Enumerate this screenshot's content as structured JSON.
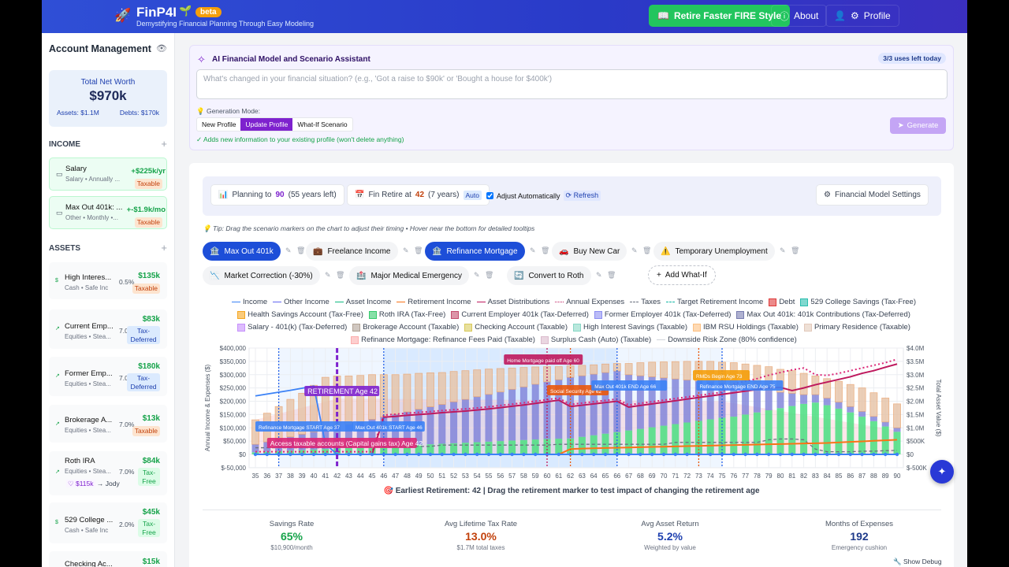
{
  "header": {
    "brand": "FinP4I",
    "beta": "beta",
    "tagline": "Demystifying Financial Planning Through Easy Modeling",
    "fire_button": "Retire Faster FIRE Style",
    "about": "About",
    "profile": "Profile"
  },
  "sidebar": {
    "title": "Account Management",
    "net_worth": {
      "label": "Total Net Worth",
      "value": "$970k",
      "assets": "Assets: $1.1M",
      "debts": "Debts: $170k"
    },
    "income_label": "INCOME",
    "assets_label": "ASSETS",
    "add": "+",
    "income": [
      {
        "name": "Salary",
        "sub": "Salary • Annually ...",
        "value": "+$225k/yr",
        "badge": "Taxable"
      },
      {
        "name": "Max Out 401k: ...",
        "sub": "Other • Monthly •...",
        "value": "+-$1.9k/mo",
        "badge": "Taxable"
      }
    ],
    "assets": [
      {
        "name": "High Interes...",
        "sub": "Cash • Safe Inc",
        "rate": "0.5%",
        "value": "$135k",
        "badge": "Taxable"
      },
      {
        "name": "Current Emp...",
        "sub": "Equities • Stea...",
        "rate": "7.0",
        "value": "$83k",
        "badge": "Tax-Deferred"
      },
      {
        "name": "Former Emp...",
        "sub": "Equities • Stea...",
        "rate": "7.0",
        "value": "$180k",
        "badge": "Tax-Deferred"
      },
      {
        "name": "Brokerage A...",
        "sub": "Equities • Stea...",
        "rate": "7.0%",
        "value": "$13k",
        "badge": "Taxable"
      },
      {
        "name": "Roth IRA",
        "sub": "Equities • Stea...",
        "rate": "7.0%",
        "value": "$84k",
        "badge": "Tax-Free",
        "gift": "♡ $115k",
        "beneficiary": "→ Jody"
      },
      {
        "name": "529 College ...",
        "sub": "Cash • Safe Inc",
        "rate": "2.0%",
        "value": "$45k",
        "badge": "Tax-Free"
      },
      {
        "name": "Checking Ac...",
        "value": "$15k"
      }
    ]
  },
  "ai": {
    "title": "AI Financial Model and Scenario Assistant",
    "uses": "3/3 uses left today",
    "placeholder": "What's changed in your financial situation? (e.g., 'Got a raise to $90k' or 'Bought a house for $400k')",
    "mode_label": "Generation Mode:",
    "modes": [
      "New Profile",
      "Update Profile",
      "What-If Scenario"
    ],
    "hint": "✓ Adds new information to your existing profile (won't delete anything)",
    "generate": "Generate"
  },
  "settings": {
    "planning_pre": "Planning to",
    "planning_age": "90",
    "planning_post": "(55 years left)",
    "retire_pre": "Fin Retire at",
    "retire_age": "42",
    "retire_post": "(7 years)",
    "auto": "Auto",
    "adjust": "Adjust Automatically",
    "refresh": "Refresh",
    "model_settings": "Financial Model Settings"
  },
  "tip": "Tip: Drag the scenario markers on the chart to adjust their timing • Hover near the bottom for detailed tooltips",
  "scenarios": [
    {
      "label": "Max Out 401k",
      "icon": "🏦",
      "active": true
    },
    {
      "label": "Freelance Income",
      "icon": "💼",
      "active": false
    },
    {
      "label": "Refinance Mortgage",
      "icon": "🏦",
      "active": true
    },
    {
      "label": "Buy New Car",
      "icon": "🚗",
      "active": false
    },
    {
      "label": "Temporary Unemployment",
      "icon": "⚠️",
      "active": false
    },
    {
      "label": "Market Correction (-30%)",
      "icon": "📉",
      "active": false
    },
    {
      "label": "Major Medical Emergency",
      "icon": "🏥",
      "active": false
    },
    {
      "label": "Convert to Roth",
      "icon": "🔄",
      "active": false
    }
  ],
  "add_whatif": "Add What-If",
  "legend": [
    {
      "label": "Income",
      "kind": "line",
      "color": "#3b82f6"
    },
    {
      "label": "Other Income",
      "kind": "line",
      "color": "#6366f1"
    },
    {
      "label": "Asset Income",
      "kind": "line",
      "color": "#10b981"
    },
    {
      "label": "Retirement Income",
      "kind": "line",
      "color": "#f97316"
    },
    {
      "label": "Asset Distributions",
      "kind": "line",
      "color": "#be185d"
    },
    {
      "label": "Annual Expenses",
      "kind": "dotted",
      "color": "#be185d"
    },
    {
      "label": "Taxes",
      "kind": "dashed",
      "color": "#6b7280"
    },
    {
      "label": "Target Retirement Income",
      "kind": "dashed",
      "color": "#14b8a6"
    },
    {
      "label": "Debt",
      "kind": "box",
      "color": "#dc2626"
    },
    {
      "label": "529 College Savings (Tax-Free)",
      "kind": "box",
      "color": "#14b8a6"
    },
    {
      "label": "Health Savings Account (Tax-Free)",
      "kind": "box",
      "color": "#f59e0b"
    },
    {
      "label": "Roth IRA (Tax-Free)",
      "kind": "box",
      "color": "#22c55e"
    },
    {
      "label": "Current Employer 401k (Tax-Deferred)",
      "kind": "box",
      "color": "#be3a5e"
    },
    {
      "label": "Former Employer 401k (Tax-Deferred)",
      "kind": "box",
      "color": "#8183f0"
    },
    {
      "label": "Max Out 401k: 401k Contributions (Tax-Deferred)",
      "kind": "box",
      "color": "#6b6fa8"
    },
    {
      "label": "Salary - 401(k) (Tax-Deferred)",
      "kind": "box",
      "color": "#c084fc"
    },
    {
      "label": "Brokerage Account (Taxable)",
      "kind": "box",
      "color": "#a8988a"
    },
    {
      "label": "Checking Account (Taxable)",
      "kind": "box",
      "color": "#d4c44a"
    },
    {
      "label": "High Interest Savings (Taxable)",
      "kind": "box",
      "color": "#7dd3c0"
    },
    {
      "label": "IBM RSU Holdings (Taxable)",
      "kind": "box",
      "color": "#fdba74"
    },
    {
      "label": "Primary Residence (Taxable)",
      "kind": "box",
      "color": "#e0c4b4"
    },
    {
      "label": "Refinance Mortgage: Refinance Fees Paid (Taxable)",
      "kind": "box",
      "color": "#fca5a5"
    },
    {
      "label": "Surplus Cash (Auto) (Taxable)",
      "kind": "box",
      "color": "#d8b4c8"
    },
    {
      "label": "Downside Risk Zone (80% confidence)",
      "kind": "line",
      "color": "#d1d5db"
    }
  ],
  "chart_data": {
    "type": "bar",
    "ylabel": "Annual Income & Expenses ($)",
    "y2label": "Total Asset Value ($)",
    "ylim": [
      -50000,
      400000
    ],
    "y2lim": [
      -500000,
      4000000
    ],
    "yticks": [
      "$400,000",
      "$350,000",
      "$300,000",
      "$250,000",
      "$200,000",
      "$150,000",
      "$100,000",
      "$50,000",
      "$0",
      "$-50,000"
    ],
    "y2ticks": [
      "$4.0M",
      "$3.5M",
      "$3.0M",
      "$2.5M",
      "$2.0M",
      "$1.5M",
      "$1.0M",
      "$500K",
      "$0",
      "$-500K"
    ],
    "x": [
      35,
      36,
      37,
      38,
      39,
      40,
      41,
      42,
      43,
      44,
      45,
      46,
      47,
      48,
      49,
      50,
      51,
      52,
      53,
      54,
      55,
      56,
      57,
      58,
      59,
      60,
      61,
      62,
      63,
      64,
      65,
      66,
      67,
      68,
      69,
      70,
      71,
      72,
      73,
      74,
      75,
      76,
      77,
      78,
      79,
      80,
      81,
      82,
      83,
      84,
      85,
      86,
      87,
      88,
      89,
      90
    ],
    "assets_unit": "$M",
    "total_assets": [
      1.3,
      1.55,
      1.8,
      2.07,
      2.3,
      2.6,
      2.9,
      2.95,
      2.95,
      2.97,
      3.0,
      3.0,
      3.0,
      3.02,
      3.05,
      3.07,
      3.08,
      3.12,
      3.15,
      3.18,
      3.21,
      3.23,
      3.25,
      3.27,
      3.29,
      3.3,
      3.3,
      3.33,
      3.35,
      3.37,
      3.4,
      3.42,
      3.42,
      3.45,
      3.47,
      3.48,
      3.49,
      3.5,
      3.5,
      3.5,
      3.47,
      3.45,
      3.4,
      3.35,
      3.3,
      3.2,
      3.15,
      3.05,
      2.95,
      2.85,
      2.75,
      2.63,
      2.5,
      2.32,
      2.12,
      1.9
    ],
    "roth_ira": [
      0.08,
      0.1,
      0.12,
      0.14,
      0.16,
      0.18,
      0.2,
      0.22,
      0.24,
      0.26,
      0.28,
      0.3,
      0.32,
      0.34,
      0.36,
      0.38,
      0.4,
      0.42,
      0.44,
      0.46,
      0.48,
      0.5,
      0.52,
      0.54,
      0.56,
      0.58,
      0.59,
      0.6,
      0.66,
      0.72,
      0.78,
      0.84,
      0.9,
      0.96,
      1.02,
      1.08,
      1.14,
      1.2,
      1.26,
      1.32,
      1.38,
      1.42,
      1.5,
      1.58,
      1.66,
      1.74,
      1.82,
      1.9,
      1.95,
      1.85,
      1.72,
      1.58,
      1.42,
      1.25,
      1.05,
      0.85
    ],
    "tax_deferred": [
      0.3,
      0.37,
      0.45,
      0.52,
      0.6,
      0.67,
      0.74,
      0.82,
      0.89,
      0.97,
      1.04,
      1.11,
      1.19,
      1.26,
      1.34,
      1.41,
      1.48,
      1.56,
      1.63,
      1.71,
      1.78,
      1.85,
      1.93,
      2.0,
      2.08,
      2.15,
      2.22,
      2.3,
      2.3,
      2.3,
      2.3,
      2.3,
      2.1,
      2.0,
      1.9,
      1.8,
      1.7,
      1.6,
      1.5,
      1.4,
      1.3,
      1.2,
      1.05,
      0.9,
      0.75,
      0.6,
      0.48,
      0.35,
      0.3,
      0.27,
      0.25,
      0.22,
      0.2,
      0.18,
      0.17,
      0.15
    ],
    "downside_risk_points": [
      [
        35,
        1.3
      ],
      [
        42,
        2.1
      ],
      [
        75,
        2.0
      ],
      [
        90,
        0.9
      ]
    ],
    "lines_unit": "$k",
    "income": [
      220,
      227,
      234,
      241,
      249,
      257,
      40,
      0,
      0,
      0,
      0,
      0,
      0,
      0,
      0,
      0,
      0,
      0,
      0,
      0,
      0,
      0,
      0,
      0,
      0,
      0,
      0,
      0,
      0,
      0,
      0,
      0,
      0,
      0,
      0,
      0,
      0,
      0,
      0,
      0,
      0,
      0,
      0,
      0,
      0,
      0,
      0,
      0,
      0,
      0,
      0,
      0,
      0,
      0,
      0,
      0
    ],
    "asset_distributions": [
      0,
      0,
      0,
      0,
      0,
      0,
      0,
      0,
      0,
      0,
      0,
      140,
      143,
      147,
      150,
      153,
      157,
      160,
      163,
      167,
      171,
      176,
      181,
      186,
      192,
      198,
      204,
      180,
      185,
      190,
      195,
      200,
      178,
      184,
      190,
      196,
      202,
      208,
      214,
      220,
      226,
      232,
      238,
      244,
      250,
      252,
      240,
      250,
      262,
      272,
      282,
      292,
      305,
      315,
      328,
      340
    ],
    "annual_expenses": [
      10,
      10,
      10,
      10,
      10,
      10,
      10,
      10,
      10,
      10,
      10,
      148,
      151,
      155,
      158,
      161,
      165,
      168,
      171,
      175,
      179,
      184,
      189,
      194,
      200,
      206,
      212,
      188,
      193,
      198,
      203,
      208,
      186,
      192,
      198,
      204,
      210,
      216,
      222,
      228,
      234,
      265,
      275,
      285,
      298,
      308,
      318,
      325,
      300,
      297,
      305,
      315,
      325,
      335,
      345,
      358
    ],
    "retirement_income": [
      0,
      0,
      0,
      0,
      0,
      0,
      0,
      0,
      0,
      0,
      0,
      0,
      0,
      0,
      0,
      0,
      0,
      0,
      0,
      0,
      0,
      0,
      0,
      0,
      0,
      0,
      0,
      20,
      22,
      23,
      24,
      25,
      26,
      27,
      28,
      29,
      30,
      31,
      32,
      33,
      34,
      35,
      36,
      37,
      38,
      39,
      40,
      41,
      42,
      43,
      45,
      47,
      49,
      51,
      53,
      55
    ],
    "taxes": [
      25,
      25,
      25,
      25,
      25,
      25,
      25,
      30,
      30,
      30,
      30,
      30,
      30,
      30,
      30,
      30,
      35,
      35,
      35,
      35,
      35,
      35,
      35,
      35,
      35,
      35,
      38,
      38,
      38,
      38,
      38,
      38,
      38,
      38,
      38,
      38,
      45,
      45,
      45,
      45,
      45,
      45,
      45,
      45,
      55,
      58,
      58,
      55,
      20,
      10,
      10,
      10,
      12,
      12,
      14,
      15
    ],
    "markers": [
      {
        "age": 37,
        "label": "Refinance Mortgage START Age 37",
        "color": "#2563eb"
      },
      {
        "age": 42,
        "label": "RETIREMENT Age 42",
        "color": "#7e22ce"
      },
      {
        "age": 46,
        "label": "Max Out 401k START Age 46",
        "color": "#2563eb"
      },
      {
        "age": 60,
        "label": "Home Mortgage paid off Age 60",
        "color": "#be185d"
      },
      {
        "age": 62,
        "label": "Social Security Age 62",
        "color": "#ea580c"
      },
      {
        "age": 66,
        "label": "Max Out 401k END Age 66",
        "color": "#2563eb"
      },
      {
        "age": 73,
        "label": "RMDs Begin Age 73",
        "color": "#ea580c"
      },
      {
        "age": 75,
        "label": "Refinance Mortgage END Age 75",
        "color": "#2563eb"
      }
    ],
    "access_label": "Access taxable accounts (Capital gains tax) Age 42"
  },
  "caption": "🎯 Earliest Retirement: 42 | Drag the retirement marker to test impact of changing the retirement age",
  "stats": [
    {
      "label": "Savings Rate",
      "value": "65%",
      "sub": "$10,900/month",
      "color": "#16a34a"
    },
    {
      "label": "Avg Lifetime Tax Rate",
      "value": "13.0%",
      "sub": "$1.7M total taxes",
      "color": "#c2410c"
    },
    {
      "label": "Avg Asset Return",
      "value": "5.2%",
      "sub": "Weighted by value",
      "color": "#1e40af"
    },
    {
      "label": "Months of Expenses",
      "value": "192",
      "sub": "Emergency cushion",
      "color": "#1e3a8a"
    }
  ],
  "debug": "🔧 Show Debug"
}
